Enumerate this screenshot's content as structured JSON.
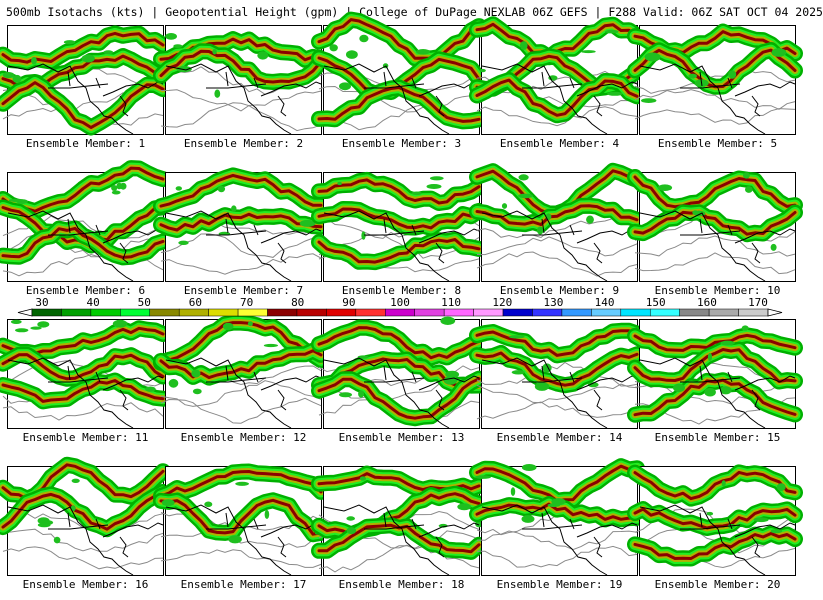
{
  "header": {
    "title": "500mb Isotachs (kts) | Geopotential Height (gpm) | College of DuPage NEXLAB   06Z GEFS | F288 Valid: 06Z SAT OCT 04 2025"
  },
  "colorbar": {
    "ticks": [
      "30",
      "40",
      "50",
      "60",
      "70",
      "80",
      "90",
      "100",
      "110",
      "120",
      "130",
      "140",
      "150",
      "160",
      "170"
    ],
    "colors": [
      "#006400",
      "#00a000",
      "#00cc00",
      "#00ff33",
      "#888800",
      "#b0b000",
      "#dddd00",
      "#ffff33",
      "#8b0000",
      "#b80000",
      "#e00000",
      "#ff3030",
      "#cc00cc",
      "#e040e0",
      "#ff66ff",
      "#ff99ff",
      "#0000cc",
      "#3333ff",
      "#3399ff",
      "#66ccff",
      "#00e5ff",
      "#33ffff",
      "#888888",
      "#aaaaaa",
      "#cccccc"
    ]
  },
  "panels": [
    {
      "label": "Ensemble Member: 1"
    },
    {
      "label": "Ensemble Member: 2"
    },
    {
      "label": "Ensemble Member: 3"
    },
    {
      "label": "Ensemble Member: 4"
    },
    {
      "label": "Ensemble Member: 5"
    },
    {
      "label": "Ensemble Member: 6"
    },
    {
      "label": "Ensemble Member: 7"
    },
    {
      "label": "Ensemble Member: 8"
    },
    {
      "label": "Ensemble Member: 9"
    },
    {
      "label": "Ensemble Member: 10"
    },
    {
      "label": "Ensemble Member: 11"
    },
    {
      "label": "Ensemble Member: 12"
    },
    {
      "label": "Ensemble Member: 13"
    },
    {
      "label": "Ensemble Member: 14"
    },
    {
      "label": "Ensemble Member: 15"
    },
    {
      "label": "Ensemble Member: 16"
    },
    {
      "label": "Ensemble Member: 17"
    },
    {
      "label": "Ensemble Member: 18"
    },
    {
      "label": "Ensemble Member: 19"
    },
    {
      "label": "Ensemble Member: 20"
    }
  ]
}
